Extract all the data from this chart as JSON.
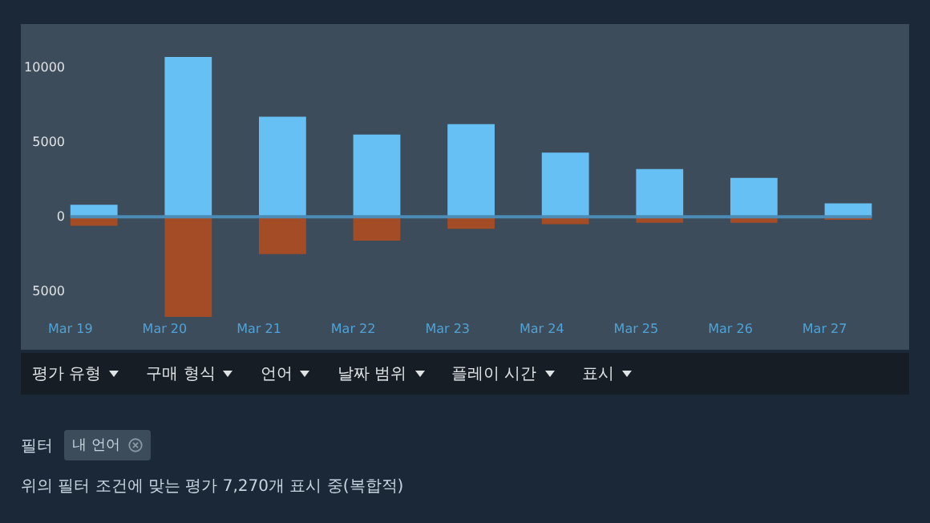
{
  "chart_data": {
    "type": "bar",
    "stacked": true,
    "categories": [
      "Mar 19",
      "Mar 20",
      "Mar 21",
      "Mar 22",
      "Mar 23",
      "Mar 24",
      "Mar 25",
      "Mar 26",
      "Mar 27"
    ],
    "series": [
      {
        "color": "#66c0f4",
        "values": [
          800,
          10700,
          6700,
          5500,
          6200,
          4300,
          3200,
          2600,
          900
        ]
      },
      {
        "color": "#a34c25",
        "values": [
          -600,
          -6700,
          -2500,
          -1600,
          -800,
          -500,
          -400,
          -400,
          -200
        ]
      }
    ],
    "ylim": [
      -8900,
      12900
    ],
    "yticks": [
      {
        "value": -5000,
        "label": "5000"
      },
      0,
      5000,
      10000
    ],
    "ref_lines": [
      {
        "axis": "y",
        "value": 0,
        "color": "#4b8bb5"
      }
    ],
    "grid": false,
    "annotations": [
      "평가 유형",
      "구매 형식",
      "언어",
      "날짜 범위",
      "플레이 시간",
      "표시",
      "필터",
      "내 언어",
      "위의 필터 조건에 맞는 평가 7,270개 표시 중(복합적)"
    ]
  }
}
